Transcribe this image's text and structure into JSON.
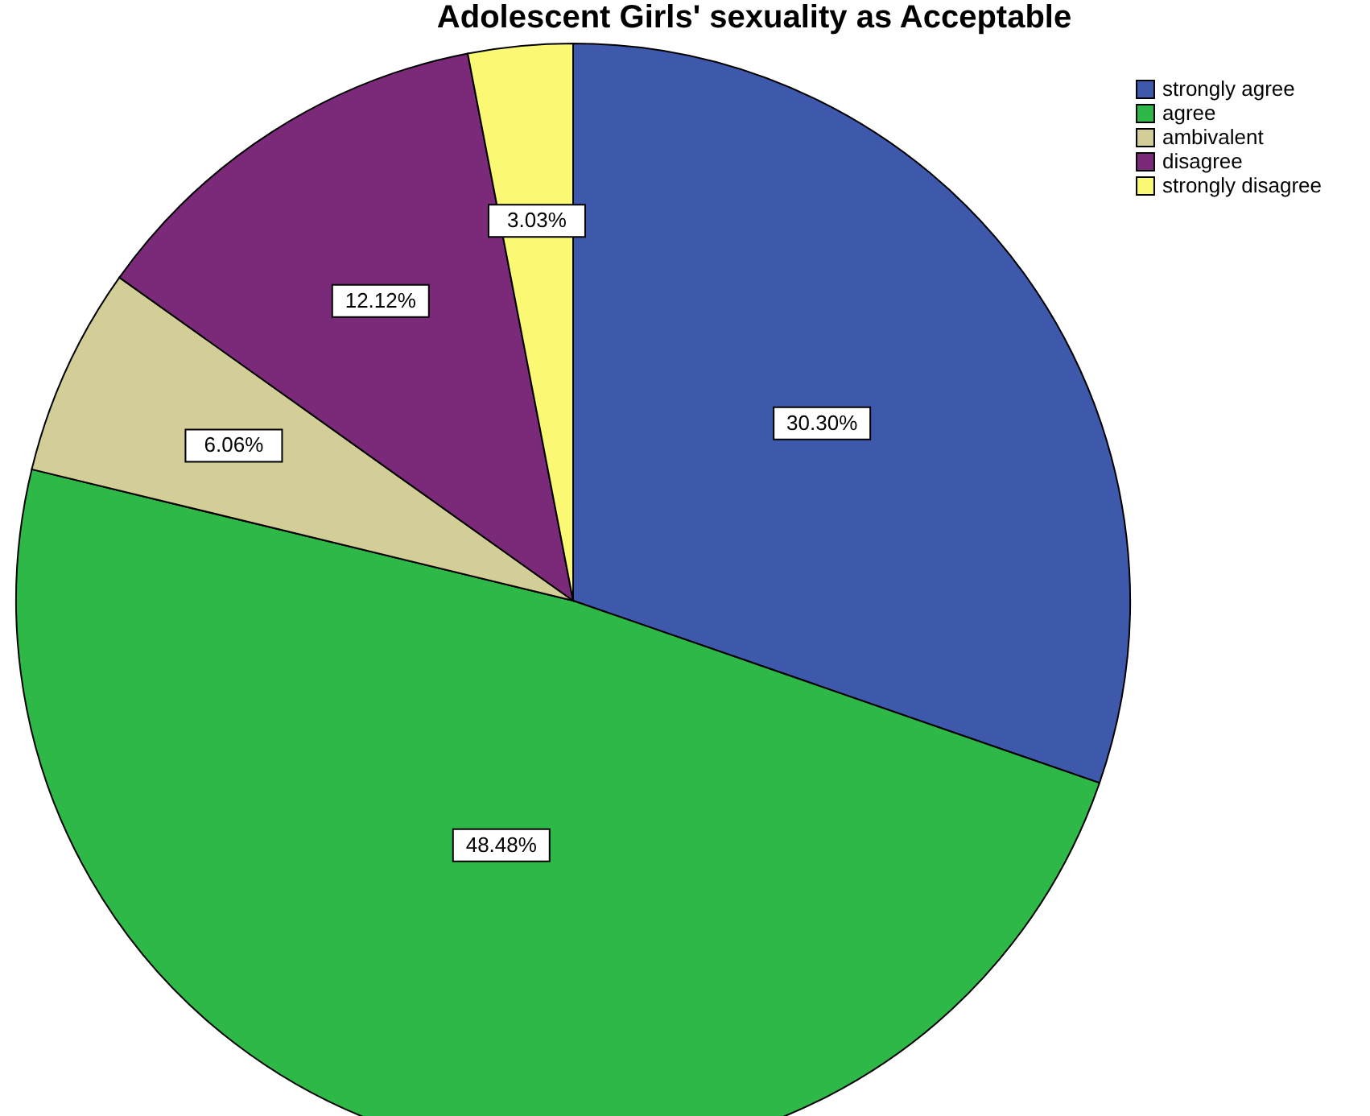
{
  "chart_data": {
    "type": "pie",
    "title": "Adolescent Girls' sexuality as Acceptable",
    "categories": [
      "strongly agree",
      "agree",
      "ambivalent",
      "disagree",
      "strongly disagree"
    ],
    "values": [
      30.3,
      48.48,
      6.06,
      12.12,
      3.03
    ],
    "colors": [
      "#3e58ac",
      "#2eb848",
      "#d3ce97",
      "#7b2a7a",
      "#fbf873"
    ],
    "value_labels": [
      "30.30%",
      "48.48%",
      "6.06%",
      "12.12%",
      "3.03%"
    ],
    "legend": "top right"
  }
}
